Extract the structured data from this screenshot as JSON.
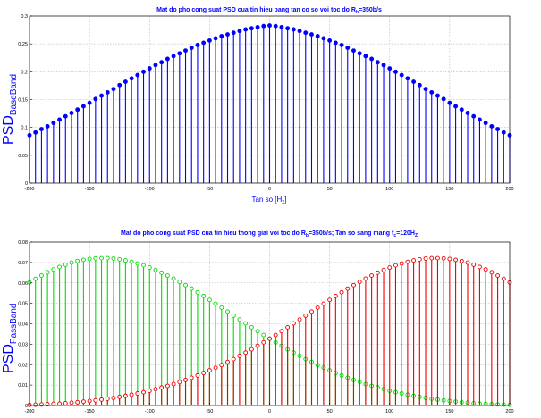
{
  "chart_data": [
    {
      "type": "stem",
      "title_main": "Mat do pho cong suat PSD cua tin hieu bang tan co so voi toc do R",
      "title_sub": "b",
      "title_tail": "=350b/s",
      "xlabel_main": "Tan so [H",
      "xlabel_sub": "z",
      "xlabel_tail": "]",
      "ylabel_main": "PSD",
      "ylabel_sub": "BaseBand",
      "xlim": [
        -200,
        200
      ],
      "ylim": [
        0,
        0.3
      ],
      "grid": true,
      "xticks": [
        "-200",
        "-150",
        "-100",
        "-50",
        "0",
        "50",
        "100",
        "150",
        "200"
      ],
      "yticks": [
        "0",
        "0.05",
        "0.1",
        "0.15",
        "0.2",
        "0.25",
        "0.3"
      ],
      "colors": {
        "stem": "#0000ff"
      },
      "series": [
        {
          "x": [
            -200,
            -195,
            -190,
            -185,
            -180,
            -175,
            -170,
            -165,
            -160,
            -155,
            -150,
            -145,
            -140,
            -135,
            -130,
            -125,
            -120,
            -115,
            -110,
            -105,
            -100,
            -95,
            -90,
            -85,
            -80,
            -75,
            -70,
            -65,
            -60,
            -55,
            -50,
            -45,
            -40,
            -35,
            -30,
            -25,
            -20,
            -15,
            -10,
            -5,
            0,
            5,
            10,
            15,
            20,
            25,
            30,
            35,
            40,
            45,
            50,
            55,
            60,
            65,
            70,
            75,
            80,
            85,
            90,
            95,
            100,
            105,
            110,
            115,
            120,
            125,
            130,
            135,
            140,
            145,
            150,
            155,
            160,
            165,
            170,
            175,
            180,
            185,
            190,
            195,
            200
          ],
          "y": [
            0.086,
            0.091,
            0.097,
            0.102,
            0.108,
            0.114,
            0.12,
            0.126,
            0.132,
            0.138,
            0.144,
            0.151,
            0.157,
            0.163,
            0.169,
            0.176,
            0.182,
            0.188,
            0.194,
            0.2,
            0.206,
            0.212,
            0.217,
            0.223,
            0.228,
            0.233,
            0.238,
            0.243,
            0.248,
            0.252,
            0.256,
            0.26,
            0.264,
            0.267,
            0.27,
            0.273,
            0.276,
            0.278,
            0.28,
            0.282,
            0.283,
            0.282,
            0.28,
            0.278,
            0.276,
            0.273,
            0.27,
            0.267,
            0.264,
            0.26,
            0.256,
            0.252,
            0.248,
            0.243,
            0.238,
            0.233,
            0.228,
            0.223,
            0.217,
            0.212,
            0.206,
            0.2,
            0.194,
            0.188,
            0.182,
            0.176,
            0.169,
            0.163,
            0.157,
            0.151,
            0.144,
            0.138,
            0.132,
            0.126,
            0.12,
            0.114,
            0.108,
            0.102,
            0.097,
            0.091,
            0.086
          ]
        }
      ]
    },
    {
      "type": "stem",
      "title_main": "Mat do pho cong suat PSD cua tin hieu thong giai voi toc do R",
      "title_sub": "b",
      "title_mid": "=350b/s; Tan so sang mang f",
      "title_sub2": "c",
      "title_tail": "=120H",
      "title_sub3": "Z",
      "ylabel_main": "PSD",
      "ylabel_sub": "PassBand",
      "xlim": [
        -200,
        200
      ],
      "ylim": [
        0,
        0.08
      ],
      "grid": true,
      "xticks": [
        "-200",
        "-150",
        "-100",
        "-50",
        "0",
        "50",
        "100",
        "150",
        "200"
      ],
      "yticks": [
        "0",
        "0.01",
        "0.02",
        "0.03",
        "0.04",
        "0.05",
        "0.06",
        "0.07",
        "0.08"
      ],
      "colors": {
        "series1": "#00dd00",
        "series2": "#ee0000"
      },
      "series": [
        {
          "color": "#00dd00",
          "x": [
            -200,
            -195,
            -190,
            -185,
            -180,
            -175,
            -170,
            -165,
            -160,
            -155,
            -150,
            -145,
            -140,
            -135,
            -130,
            -125,
            -120,
            -115,
            -110,
            -105,
            -100,
            -95,
            -90,
            -85,
            -80,
            -75,
            -70,
            -65,
            -60,
            -55,
            -50,
            -45,
            -40,
            -35,
            -30,
            -25,
            -20,
            -15,
            -10,
            -5,
            0,
            5,
            10,
            15,
            20,
            25,
            30,
            35,
            40,
            45,
            50,
            55,
            60,
            65,
            70,
            75,
            80,
            85,
            90,
            95,
            100,
            105,
            110,
            115,
            120,
            125,
            130,
            135,
            140,
            145,
            150,
            155,
            160,
            165,
            170,
            175,
            180,
            185,
            190,
            195,
            200
          ],
          "y": [
            0.0602,
            0.062,
            0.0636,
            0.0652,
            0.0666,
            0.0678,
            0.0689,
            0.0699,
            0.0707,
            0.0713,
            0.0717,
            0.072,
            0.0721,
            0.0721,
            0.0719,
            0.0715,
            0.071,
            0.0703,
            0.0695,
            0.0686,
            0.0675,
            0.0663,
            0.065,
            0.0636,
            0.0621,
            0.0605,
            0.0589,
            0.0572,
            0.0554,
            0.0536,
            0.0517,
            0.0498,
            0.0479,
            0.046,
            0.044,
            0.0421,
            0.0402,
            0.0383,
            0.0364,
            0.0345,
            0.0327,
            0.0309,
            0.0292,
            0.0275,
            0.0259,
            0.0243,
            0.0227,
            0.0213,
            0.0198,
            0.0185,
            0.0172,
            0.0159,
            0.0147,
            0.0136,
            0.0125,
            0.0115,
            0.0105,
            0.0096,
            0.0088,
            0.008,
            0.0072,
            0.0065,
            0.0059,
            0.0053,
            0.0047,
            0.0042,
            0.0037,
            0.0033,
            0.0029,
            0.0025,
            0.0022,
            0.0019,
            0.0016,
            0.0014,
            0.0011,
            0.0009,
            0.0008,
            0.0006,
            0.0005,
            0.0004,
            0.0003
          ]
        },
        {
          "color": "#ee0000",
          "x": [
            -200,
            -195,
            -190,
            -185,
            -180,
            -175,
            -170,
            -165,
            -160,
            -155,
            -150,
            -145,
            -140,
            -135,
            -130,
            -125,
            -120,
            -115,
            -110,
            -105,
            -100,
            -95,
            -90,
            -85,
            -80,
            -75,
            -70,
            -65,
            -60,
            -55,
            -50,
            -45,
            -40,
            -35,
            -30,
            -25,
            -20,
            -15,
            -10,
            -5,
            0,
            5,
            10,
            15,
            20,
            25,
            30,
            35,
            40,
            45,
            50,
            55,
            60,
            65,
            70,
            75,
            80,
            85,
            90,
            95,
            100,
            105,
            110,
            115,
            120,
            125,
            130,
            135,
            140,
            145,
            150,
            155,
            160,
            165,
            170,
            175,
            180,
            185,
            190,
            195,
            200
          ],
          "y": [
            0.0003,
            0.0004,
            0.0005,
            0.0006,
            0.0008,
            0.0009,
            0.0011,
            0.0014,
            0.0016,
            0.0019,
            0.0022,
            0.0025,
            0.0029,
            0.0033,
            0.0037,
            0.0042,
            0.0047,
            0.0053,
            0.0059,
            0.0065,
            0.0072,
            0.008,
            0.0088,
            0.0096,
            0.0105,
            0.0115,
            0.0125,
            0.0136,
            0.0147,
            0.0159,
            0.0172,
            0.0185,
            0.0198,
            0.0213,
            0.0227,
            0.0243,
            0.0259,
            0.0275,
            0.0292,
            0.0309,
            0.0327,
            0.0345,
            0.0364,
            0.0383,
            0.0402,
            0.0421,
            0.044,
            0.046,
            0.0479,
            0.0498,
            0.0517,
            0.0536,
            0.0554,
            0.0572,
            0.0589,
            0.0605,
            0.0621,
            0.0636,
            0.065,
            0.0663,
            0.0675,
            0.0686,
            0.0695,
            0.0703,
            0.071,
            0.0715,
            0.0719,
            0.0721,
            0.0721,
            0.072,
            0.0717,
            0.0713,
            0.0707,
            0.0699,
            0.0689,
            0.0678,
            0.0666,
            0.0652,
            0.0636,
            0.062,
            0.0602
          ]
        }
      ]
    }
  ]
}
